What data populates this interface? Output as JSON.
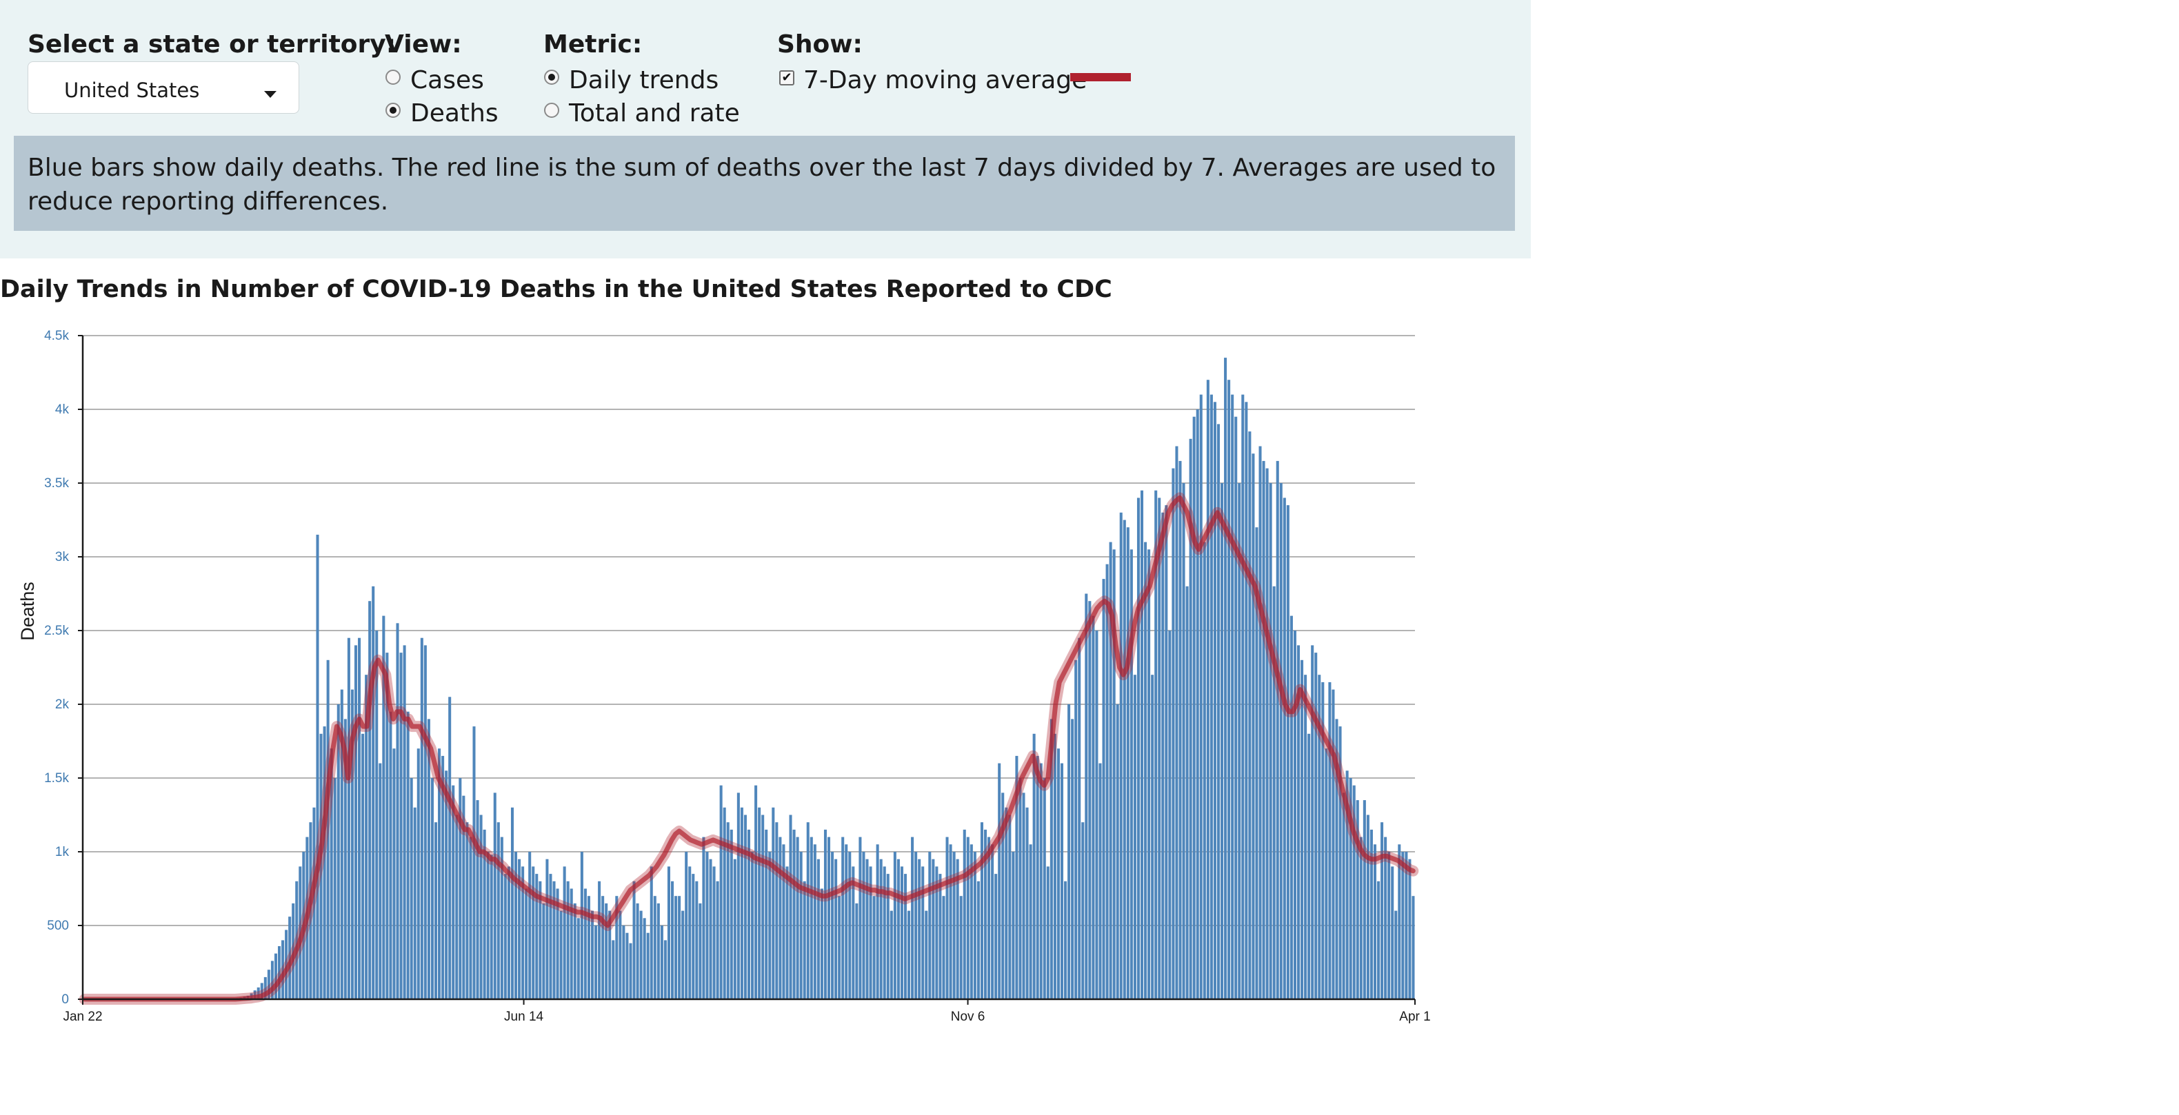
{
  "controls": {
    "state_label": "Select a state or territory:",
    "state_value": "United States",
    "view_label": "View:",
    "view_options": [
      {
        "label": "Cases",
        "selected": false
      },
      {
        "label": "Deaths",
        "selected": true
      }
    ],
    "metric_label": "Metric:",
    "metric_options": [
      {
        "label": "Daily trends",
        "selected": true
      },
      {
        "label": "Total and rate",
        "selected": false
      }
    ],
    "show_label": "Show:",
    "show_option": {
      "label": "7-Day moving average",
      "checked": true
    }
  },
  "note": "Blue bars show daily deaths. The red line is the sum of deaths over the last 7 days divided by 7. Averages are used to reduce reporting differences.",
  "colors": {
    "panel_bg": "#eaf3f4",
    "note_bg": "#b6c6d1",
    "bar": "#4f86bb",
    "line": "#b0212e",
    "tick_blue": "#3f7ab0"
  },
  "chart_data": {
    "type": "bar",
    "title": "Daily Trends in Number of COVID-19 Deaths in the United States Reported to CDC",
    "ylabel": "Deaths",
    "xlabel": "",
    "ylim": [
      0,
      4500
    ],
    "y_ticks": [
      {
        "v": 0,
        "label": "0"
      },
      {
        "v": 500,
        "label": "500"
      },
      {
        "v": 1000,
        "label": "1k"
      },
      {
        "v": 1500,
        "label": "1.5k"
      },
      {
        "v": 2000,
        "label": "2k"
      },
      {
        "v": 2500,
        "label": "2.5k"
      },
      {
        "v": 3000,
        "label": "3k"
      },
      {
        "v": 3500,
        "label": "3.5k"
      },
      {
        "v": 4000,
        "label": "4k"
      },
      {
        "v": 4500,
        "label": "4.5k"
      }
    ],
    "x_ticks": [
      {
        "date": "2020-01-22",
        "label": "Jan 22"
      },
      {
        "date": "2020-06-14",
        "label": "Jun 14"
      },
      {
        "date": "2020-11-06",
        "label": "Nov 6"
      },
      {
        "date": "2021-04-01",
        "label": "Apr 1"
      }
    ],
    "x_start": "2020-01-22",
    "grid": true,
    "series": [
      {
        "name": "Daily deaths",
        "kind": "bar",
        "values": [
          0,
          0,
          0,
          0,
          0,
          0,
          0,
          0,
          0,
          0,
          0,
          0,
          0,
          0,
          0,
          0,
          0,
          0,
          0,
          0,
          0,
          0,
          0,
          0,
          0,
          0,
          0,
          0,
          0,
          0,
          0,
          0,
          0,
          0,
          0,
          0,
          0,
          0,
          0,
          0,
          0,
          0,
          3,
          5,
          7,
          10,
          18,
          24,
          40,
          60,
          80,
          110,
          150,
          200,
          260,
          310,
          360,
          400,
          470,
          560,
          650,
          800,
          900,
          1000,
          1100,
          1200,
          1300,
          3150,
          1800,
          1850,
          2300,
          1700,
          1500,
          2000,
          2100,
          1900,
          2450,
          2100,
          2400,
          2450,
          1800,
          2200,
          2700,
          2800,
          2500,
          1600,
          2600,
          2350,
          1950,
          1700,
          2550,
          2350,
          2400,
          1950,
          1500,
          1300,
          1700,
          2450,
          2400,
          1900,
          1500,
          1200,
          1700,
          1650,
          1550,
          2050,
          1450,
          1250,
          1500,
          1380,
          1200,
          1100,
          1850,
          1350,
          1250,
          1150,
          1000,
          980,
          1400,
          1200,
          1100,
          850,
          900,
          1300,
          1000,
          950,
          900,
          750,
          1000,
          900,
          850,
          800,
          650,
          950,
          850,
          800,
          750,
          600,
          900,
          800,
          750,
          650,
          550,
          1000,
          750,
          700,
          600,
          500,
          800,
          700,
          650,
          600,
          400,
          700,
          600,
          500,
          450,
          380,
          800,
          650,
          600,
          550,
          450,
          900,
          700,
          650,
          500,
          400,
          900,
          800,
          700,
          700,
          600,
          1000,
          900,
          850,
          800,
          650,
          1100,
          1000,
          950,
          900,
          800,
          1450,
          1300,
          1200,
          1150,
          950,
          1400,
          1300,
          1250,
          1150,
          1000,
          1450,
          1300,
          1250,
          1150,
          1000,
          1300,
          1200,
          1100,
          1050,
          900,
          1250,
          1150,
          1100,
          1000,
          800,
          1200,
          1100,
          1050,
          950,
          750,
          1150,
          1100,
          1000,
          950,
          700,
          1100,
          1050,
          1000,
          900,
          650,
          1100,
          1000,
          950,
          900,
          700,
          1050,
          950,
          900,
          850,
          600,
          1000,
          950,
          900,
          850,
          600,
          1100,
          1000,
          950,
          900,
          600,
          1000,
          950,
          900,
          850,
          700,
          1100,
          1050,
          1000,
          950,
          700,
          1150,
          1100,
          1050,
          1000,
          800,
          1200,
          1150,
          1100,
          1050,
          850,
          1600,
          1400,
          1300,
          1250,
          1000,
          1650,
          1500,
          1400,
          1300,
          1050,
          1800,
          1650,
          1600,
          1500,
          900,
          1900,
          1800,
          1700,
          1600,
          800,
          2000,
          1900,
          2300,
          2450,
          1200,
          2750,
          2700,
          2600,
          2500,
          1600,
          2850,
          2950,
          3100,
          3050,
          2000,
          3300,
          3250,
          3200,
          3050,
          2200,
          3400,
          3450,
          3100,
          3050,
          2200,
          3450,
          3400,
          3300,
          3350,
          2500,
          3600,
          3750,
          3650,
          3500,
          2800,
          3800,
          3950,
          4000,
          4100,
          3100,
          4200,
          4100,
          4050,
          3900,
          3500,
          4350,
          4200,
          4100,
          3950,
          3500,
          4100,
          4050,
          3850,
          3700,
          3200,
          3750,
          3650,
          3600,
          3500,
          2800,
          3650,
          3500,
          3400,
          3350,
          2600,
          2500,
          2400,
          2300,
          2200,
          1800,
          2400,
          2350,
          2200,
          2150,
          1700,
          2150,
          2100,
          1900,
          1850,
          1400,
          1550,
          1500,
          1450,
          1350,
          1100,
          1350,
          1250,
          1150,
          1050,
          800,
          1200,
          1100,
          1000,
          900,
          600,
          1050,
          1000,
          1000,
          950,
          700
        ]
      },
      {
        "name": "7-Day moving average",
        "kind": "line",
        "values": [
          0,
          0,
          0,
          0,
          0,
          0,
          0,
          0,
          0,
          0,
          0,
          0,
          0,
          0,
          0,
          0,
          0,
          0,
          0,
          0,
          0,
          0,
          0,
          0,
          0,
          0,
          0,
          0,
          0,
          0,
          0,
          0,
          0,
          0,
          0,
          0,
          0,
          0,
          0,
          0,
          0,
          2,
          4,
          6,
          8,
          12,
          16,
          22,
          34,
          50,
          72,
          100,
          135,
          175,
          215,
          265,
          320,
          380,
          460,
          550,
          660,
          780,
          900,
          1050,
          1250,
          1500,
          1700,
          1850,
          1800,
          1700,
          1500,
          1750,
          1850,
          1900,
          1850,
          1850,
          2100,
          2250,
          2300,
          2250,
          2200,
          2000,
          1900,
          1950,
          1950,
          1900,
          1900,
          1850,
          1850,
          1850,
          1800,
          1750,
          1700,
          1600,
          1500,
          1450,
          1400,
          1350,
          1300,
          1250,
          1200,
          1150,
          1150,
          1100,
          1050,
          1000,
          1000,
          980,
          950,
          950,
          920,
          900,
          870,
          850,
          820,
          800,
          780,
          760,
          740,
          720,
          700,
          690,
          680,
          670,
          660,
          650,
          640,
          630,
          620,
          610,
          600,
          590,
          590,
          580,
          570,
          560,
          560,
          550,
          520,
          500,
          540,
          580,
          620,
          660,
          700,
          740,
          760,
          780,
          800,
          820,
          840,
          870,
          900,
          940,
          980,
          1030,
          1080,
          1120,
          1140,
          1120,
          1100,
          1080,
          1070,
          1060,
          1050,
          1060,
          1070,
          1080,
          1070,
          1060,
          1050,
          1040,
          1030,
          1020,
          1010,
          1000,
          990,
          980,
          960,
          950,
          940,
          930,
          920,
          900,
          880,
          860,
          840,
          820,
          800,
          780,
          760,
          750,
          740,
          730,
          720,
          710,
          700,
          700,
          710,
          720,
          730,
          740,
          760,
          780,
          790,
          780,
          770,
          760,
          750,
          740,
          740,
          730,
          730,
          720,
          720,
          710,
          700,
          690,
          680,
          690,
          700,
          710,
          720,
          730,
          740,
          750,
          760,
          770,
          780,
          790,
          800,
          810,
          820,
          830,
          840,
          860,
          880,
          900,
          920,
          950,
          980,
          1020,
          1060,
          1100,
          1160,
          1220,
          1280,
          1350,
          1420,
          1500,
          1550,
          1600,
          1650,
          1550,
          1480,
          1450,
          1500,
          1750,
          2000,
          2150,
          2200,
          2250,
          2300,
          2350,
          2400,
          2450,
          2500,
          2550,
          2600,
          2650,
          2680,
          2700,
          2680,
          2600,
          2400,
          2250,
          2200,
          2250,
          2400,
          2550,
          2650,
          2700,
          2750,
          2800,
          2900,
          3000,
          3100,
          3200,
          3300,
          3350,
          3380,
          3400,
          3350,
          3300,
          3200,
          3100,
          3050,
          3100,
          3150,
          3200,
          3250,
          3300,
          3250,
          3200,
          3150,
          3100,
          3050,
          3000,
          2950,
          2900,
          2850,
          2800,
          2700,
          2600,
          2500,
          2400,
          2300,
          2200,
          2100,
          2000,
          1950,
          1950,
          2000,
          2100,
          2050,
          2000,
          1950,
          1900,
          1850,
          1800,
          1750,
          1700,
          1650,
          1550,
          1450,
          1350,
          1250,
          1150,
          1080,
          1020,
          980,
          960,
          950,
          950,
          960,
          970,
          970,
          960,
          950,
          940,
          920,
          900,
          880,
          870
        ]
      }
    ]
  }
}
